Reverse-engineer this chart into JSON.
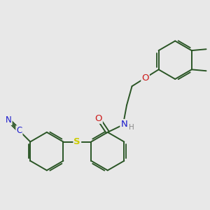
{
  "bg": "#e8e8e8",
  "bond_color": "#2a5525",
  "bond_width": 1.4,
  "colors": {
    "N": "#1a1acc",
    "O": "#cc1a1a",
    "S": "#cccc00",
    "CN_blue": "#1a1acc",
    "H_gray": "#888888",
    "ring": "#2a5525"
  },
  "fs": 8.5,
  "dpi": 100,
  "figsize": [
    3.0,
    3.0
  ]
}
